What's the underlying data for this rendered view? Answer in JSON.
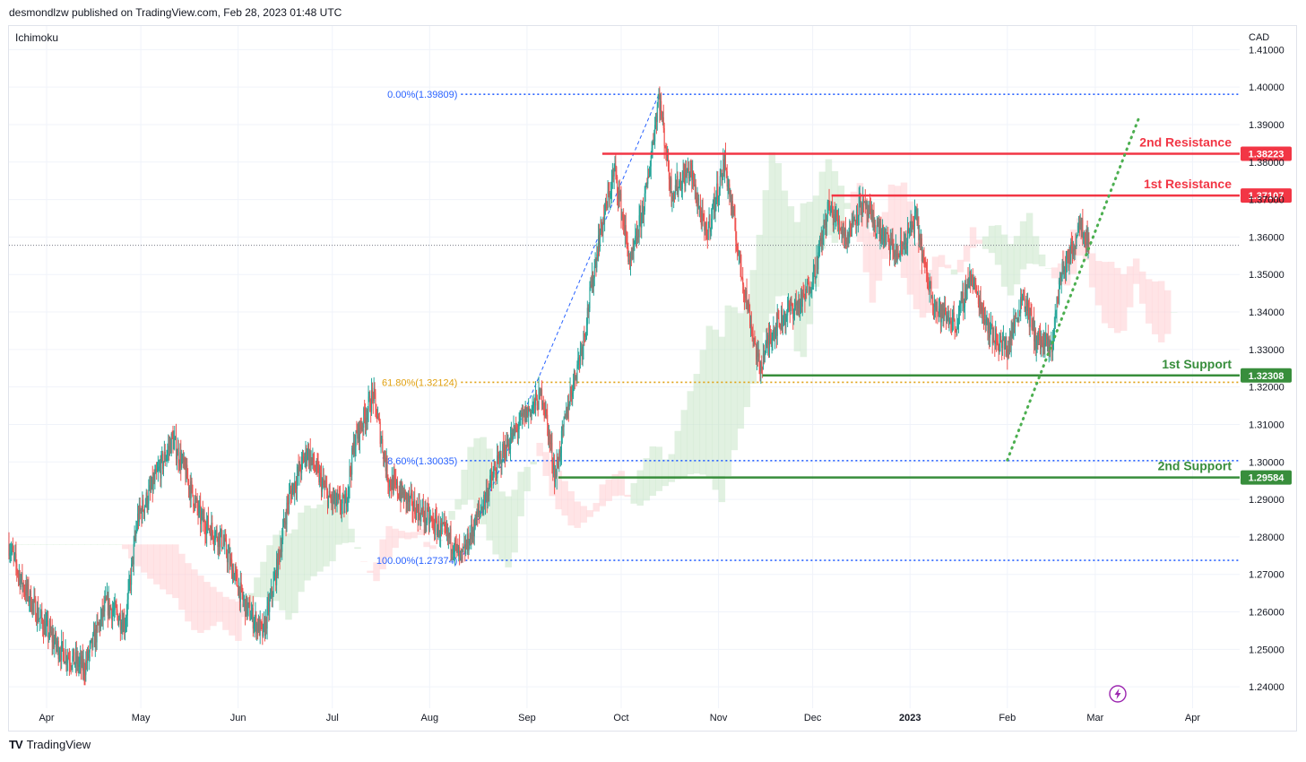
{
  "header": {
    "published": "desmondlzw published on TradingView.com, Feb 28, 2023 01:48 UTC"
  },
  "footer": {
    "brand": "TradingView",
    "logo": "TV"
  },
  "colors": {
    "up": "#26a69a",
    "down": "#ef5350",
    "resistance": "#f23645",
    "support": "#388e3c",
    "fib": "#2962ff",
    "fib_golden": "#e0a010",
    "trend": "#4caf50",
    "cloud_bull": "#c8e6c9",
    "cloud_bear": "#ffcdd2",
    "grid": "#f0f3fa"
  },
  "icons": {
    "lightning": "lightning-icon"
  },
  "chart_data": {
    "type": "candlestick",
    "symbol_currency": "CAD",
    "indicator": "Ichimoku",
    "y_range": [
      1.2343,
      1.4163
    ],
    "y_ticks": [
      {
        "value": 1.41,
        "label": "1.41000"
      },
      {
        "value": 1.4,
        "label": "1.40000"
      },
      {
        "value": 1.39,
        "label": "1.39000"
      },
      {
        "value": 1.38,
        "label": "1.38000"
      },
      {
        "value": 1.37,
        "label": "1.37000"
      },
      {
        "value": 1.36,
        "label": "1.36000"
      },
      {
        "value": 1.35,
        "label": "1.35000"
      },
      {
        "value": 1.34,
        "label": "1.34000"
      },
      {
        "value": 1.33,
        "label": "1.33000"
      },
      {
        "value": 1.32,
        "label": "1.32000"
      },
      {
        "value": 1.31,
        "label": "1.31000"
      },
      {
        "value": 1.3,
        "label": "1.30000"
      },
      {
        "value": 1.29,
        "label": "1.29000"
      },
      {
        "value": 1.28,
        "label": "1.28000"
      },
      {
        "value": 1.27,
        "label": "1.27000"
      },
      {
        "value": 1.26,
        "label": "1.26000"
      },
      {
        "value": 1.25,
        "label": "1.25000"
      },
      {
        "value": 1.24,
        "label": "1.24000"
      }
    ],
    "x_start": "2022-03-20",
    "x_end": "2023-04-16",
    "x_ticks": [
      {
        "date": "2022-04-01",
        "label": "Apr"
      },
      {
        "date": "2022-05-01",
        "label": "May"
      },
      {
        "date": "2022-06-01",
        "label": "Jun"
      },
      {
        "date": "2022-07-01",
        "label": "Jul"
      },
      {
        "date": "2022-08-01",
        "label": "Aug"
      },
      {
        "date": "2022-09-01",
        "label": "Sep"
      },
      {
        "date": "2022-10-01",
        "label": "Oct"
      },
      {
        "date": "2022-11-01",
        "label": "Nov"
      },
      {
        "date": "2022-12-01",
        "label": "Dec"
      },
      {
        "date": "2023-01-01",
        "label": "2023",
        "bold": true
      },
      {
        "date": "2023-02-01",
        "label": "Feb"
      },
      {
        "date": "2023-03-01",
        "label": "Mar"
      },
      {
        "date": "2023-04-01",
        "label": "Apr"
      }
    ],
    "last_price": 1.3578,
    "price_path": [
      {
        "date": "2022-03-20",
        "price": 1.278
      },
      {
        "date": "2022-03-24",
        "price": 1.268
      },
      {
        "date": "2022-03-30",
        "price": 1.258
      },
      {
        "date": "2022-04-05",
        "price": 1.25
      },
      {
        "date": "2022-04-13",
        "price": 1.245
      },
      {
        "date": "2022-04-20",
        "price": 1.262
      },
      {
        "date": "2022-04-26",
        "price": 1.257
      },
      {
        "date": "2022-04-30",
        "price": 1.285
      },
      {
        "date": "2022-05-04",
        "price": 1.292
      },
      {
        "date": "2022-05-11",
        "price": 1.306
      },
      {
        "date": "2022-05-14",
        "price": 1.3
      },
      {
        "date": "2022-05-20",
        "price": 1.285
      },
      {
        "date": "2022-05-27",
        "price": 1.279
      },
      {
        "date": "2022-06-03",
        "price": 1.262
      },
      {
        "date": "2022-06-09",
        "price": 1.254
      },
      {
        "date": "2022-06-13",
        "price": 1.27
      },
      {
        "date": "2022-06-17",
        "price": 1.29
      },
      {
        "date": "2022-06-23",
        "price": 1.303
      },
      {
        "date": "2022-06-30",
        "price": 1.29
      },
      {
        "date": "2022-07-05",
        "price": 1.288
      },
      {
        "date": "2022-07-08",
        "price": 1.305
      },
      {
        "date": "2022-07-14",
        "price": 1.318
      },
      {
        "date": "2022-07-19",
        "price": 1.295
      },
      {
        "date": "2022-07-27",
        "price": 1.288
      },
      {
        "date": "2022-08-03",
        "price": 1.283
      },
      {
        "date": "2022-08-08",
        "price": 1.279
      },
      {
        "date": "2022-08-11",
        "price": 1.2737
      },
      {
        "date": "2022-08-17",
        "price": 1.287
      },
      {
        "date": "2022-08-24",
        "price": 1.302
      },
      {
        "date": "2022-08-31",
        "price": 1.312
      },
      {
        "date": "2022-09-06",
        "price": 1.318
      },
      {
        "date": "2022-09-10",
        "price": 1.296
      },
      {
        "date": "2022-09-14",
        "price": 1.315
      },
      {
        "date": "2022-09-19",
        "price": 1.333
      },
      {
        "date": "2022-09-24",
        "price": 1.36
      },
      {
        "date": "2022-09-29",
        "price": 1.378
      },
      {
        "date": "2022-10-04",
        "price": 1.352
      },
      {
        "date": "2022-10-09",
        "price": 1.372
      },
      {
        "date": "2022-10-13",
        "price": 1.398
      },
      {
        "date": "2022-10-17",
        "price": 1.372
      },
      {
        "date": "2022-10-23",
        "price": 1.378
      },
      {
        "date": "2022-10-28",
        "price": 1.36
      },
      {
        "date": "2022-11-03",
        "price": 1.38
      },
      {
        "date": "2022-11-08",
        "price": 1.352
      },
      {
        "date": "2022-11-14",
        "price": 1.325
      },
      {
        "date": "2022-11-18",
        "price": 1.335
      },
      {
        "date": "2022-11-23",
        "price": 1.34
      },
      {
        "date": "2022-11-28",
        "price": 1.343
      },
      {
        "date": "2022-12-02",
        "price": 1.352
      },
      {
        "date": "2022-12-06",
        "price": 1.368
      },
      {
        "date": "2022-12-12",
        "price": 1.36
      },
      {
        "date": "2022-12-16",
        "price": 1.369
      },
      {
        "date": "2022-12-22",
        "price": 1.362
      },
      {
        "date": "2022-12-28",
        "price": 1.355
      },
      {
        "date": "2023-01-03",
        "price": 1.365
      },
      {
        "date": "2023-01-06",
        "price": 1.35
      },
      {
        "date": "2023-01-10",
        "price": 1.34
      },
      {
        "date": "2023-01-16",
        "price": 1.337
      },
      {
        "date": "2023-01-20",
        "price": 1.35
      },
      {
        "date": "2023-01-27",
        "price": 1.334
      },
      {
        "date": "2023-02-01",
        "price": 1.33
      },
      {
        "date": "2023-02-06",
        "price": 1.345
      },
      {
        "date": "2023-02-10",
        "price": 1.333
      },
      {
        "date": "2023-02-15",
        "price": 1.33
      },
      {
        "date": "2023-02-18",
        "price": 1.35
      },
      {
        "date": "2023-02-22",
        "price": 1.357
      },
      {
        "date": "2023-02-24",
        "price": 1.365
      },
      {
        "date": "2023-02-27",
        "price": 1.3578
      }
    ],
    "fibonacci": {
      "anchor_low": {
        "date": "2022-08-11",
        "price": 1.27374
      },
      "anchor_high": {
        "date": "2022-10-13",
        "price": 1.39809
      },
      "levels": [
        {
          "label": "0.00%(1.39809)",
          "value": 1.39809,
          "golden": false
        },
        {
          "label": "61.80%(1.32124)",
          "value": 1.32124,
          "golden": true
        },
        {
          "label": "78.60%(1.30035)",
          "value": 1.30035,
          "golden": false
        },
        {
          "label": "100.00%(1.27374)",
          "value": 1.27374,
          "golden": false
        }
      ]
    },
    "levels": [
      {
        "name": "2nd Resistance",
        "value": 1.38223,
        "label": "1.38223",
        "kind": "resistance",
        "from": "2022-09-25"
      },
      {
        "name": "1st Resistance",
        "value": 1.37107,
        "label": "1.37107",
        "kind": "resistance",
        "from": "2022-12-07"
      },
      {
        "name": "1st Support",
        "value": 1.32308,
        "label": "1.32308",
        "kind": "support",
        "from": "2022-11-15"
      },
      {
        "name": "2nd Support",
        "value": 1.29584,
        "label": "1.29584",
        "kind": "support",
        "from": "2022-09-11"
      }
    ],
    "trendline": {
      "start": {
        "date": "2023-02-01",
        "price": 1.3005
      },
      "end": {
        "date": "2023-03-15",
        "price": 1.392
      }
    }
  }
}
